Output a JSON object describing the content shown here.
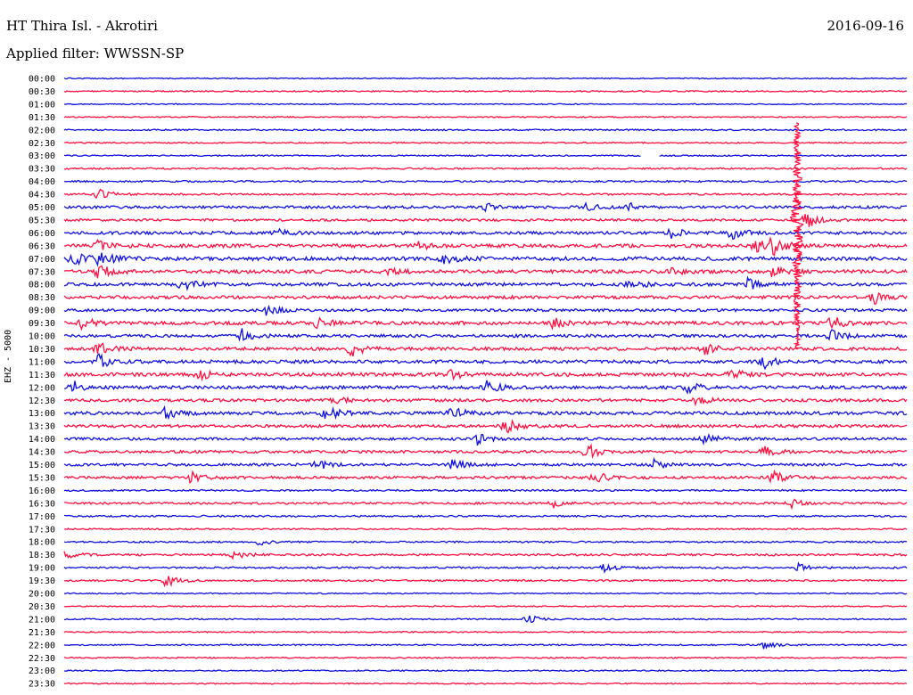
{
  "header": {
    "station": "HT Thira Isl. - Akrotiri",
    "date": "2016-09-16",
    "filter": "Applied filter: WWSSN-SP"
  },
  "y_axis_label": "EHZ - 5000",
  "colors": {
    "even_trace": "#1010e0",
    "odd_trace": "#ff1040",
    "text": "#000000",
    "background": "#ffffff"
  },
  "chart_data": {
    "type": "line",
    "title": "HT Thira Isl. - Akrotiri",
    "subtitle": "Applied filter: WWSSN-SP",
    "ylabel": "EHZ - 5000",
    "trace_interval": "30 min",
    "rows": [
      {
        "time": "00:00",
        "activity": 0.05,
        "events": []
      },
      {
        "time": "00:30",
        "activity": 0.15,
        "events": []
      },
      {
        "time": "01:00",
        "activity": 0.05,
        "events": []
      },
      {
        "time": "01:30",
        "activity": 0.08,
        "events": []
      },
      {
        "time": "02:00",
        "activity": 0.2,
        "events": []
      },
      {
        "time": "02:30",
        "activity": 0.12,
        "events": []
      },
      {
        "time": "03:00",
        "activity": 0.15,
        "events": [],
        "gap": [
          0.685,
          0.705
        ]
      },
      {
        "time": "03:30",
        "activity": 0.25,
        "events": []
      },
      {
        "time": "04:00",
        "activity": 0.3,
        "events": []
      },
      {
        "time": "04:30",
        "activity": 0.3,
        "events": [
          [
            0.04,
            6
          ]
        ]
      },
      {
        "time": "05:00",
        "activity": 0.6,
        "events": [
          [
            0.5,
            4
          ],
          [
            0.62,
            5
          ],
          [
            0.67,
            4
          ]
        ]
      },
      {
        "time": "05:30",
        "activity": 0.5,
        "events": [
          [
            0.88,
            10
          ]
        ]
      },
      {
        "time": "06:00",
        "activity": 0.7,
        "events": [
          [
            0.25,
            5
          ],
          [
            0.72,
            6
          ],
          [
            0.79,
            8
          ]
        ]
      },
      {
        "time": "06:30",
        "activity": 0.9,
        "events": [
          [
            0.04,
            5
          ],
          [
            0.42,
            4
          ],
          [
            0.82,
            7
          ],
          [
            0.84,
            10
          ]
        ]
      },
      {
        "time": "07:00",
        "activity": 1.0,
        "events": [
          [
            0.01,
            8
          ],
          [
            0.04,
            9
          ],
          [
            0.45,
            6
          ]
        ]
      },
      {
        "time": "07:30",
        "activity": 0.9,
        "events": [
          [
            0.04,
            8
          ],
          [
            0.38,
            5
          ],
          [
            0.72,
            5
          ],
          [
            0.84,
            6
          ]
        ]
      },
      {
        "time": "08:00",
        "activity": 0.8,
        "events": [
          [
            0.14,
            7
          ],
          [
            0.67,
            6
          ],
          [
            0.81,
            7
          ]
        ]
      },
      {
        "time": "08:30",
        "activity": 0.8,
        "events": [
          [
            0.96,
            8
          ]
        ]
      },
      {
        "time": "09:00",
        "activity": 0.6,
        "events": [
          [
            0.24,
            6
          ]
        ]
      },
      {
        "time": "09:30",
        "activity": 0.9,
        "events": [
          [
            0.02,
            7
          ],
          [
            0.3,
            7
          ],
          [
            0.58,
            6
          ],
          [
            0.91,
            8
          ]
        ]
      },
      {
        "time": "10:00",
        "activity": 0.7,
        "events": [
          [
            0.21,
            8
          ],
          [
            0.91,
            7
          ]
        ]
      },
      {
        "time": "10:30",
        "activity": 0.8,
        "events": [
          [
            0.04,
            7
          ],
          [
            0.34,
            9
          ],
          [
            0.76,
            7
          ]
        ]
      },
      {
        "time": "11:00",
        "activity": 0.8,
        "events": [
          [
            0.04,
            8
          ],
          [
            0.83,
            7
          ]
        ]
      },
      {
        "time": "11:30",
        "activity": 0.9,
        "events": [
          [
            0.16,
            5
          ],
          [
            0.46,
            6
          ],
          [
            0.79,
            7
          ]
        ]
      },
      {
        "time": "12:00",
        "activity": 0.8,
        "events": [
          [
            0.01,
            7
          ],
          [
            0.5,
            8
          ],
          [
            0.74,
            6
          ]
        ]
      },
      {
        "time": "12:30",
        "activity": 0.7,
        "events": [
          [
            0.32,
            5
          ],
          [
            0.75,
            5
          ]
        ]
      },
      {
        "time": "13:00",
        "activity": 0.8,
        "events": [
          [
            0.12,
            7
          ],
          [
            0.31,
            9
          ],
          [
            0.46,
            7
          ]
        ]
      },
      {
        "time": "13:30",
        "activity": 0.7,
        "events": [
          [
            0.52,
            11
          ]
        ]
      },
      {
        "time": "14:00",
        "activity": 0.6,
        "events": [
          [
            0.49,
            6
          ],
          [
            0.76,
            6
          ]
        ]
      },
      {
        "time": "14:30",
        "activity": 0.6,
        "events": [
          [
            0.62,
            9
          ],
          [
            0.83,
            6
          ]
        ]
      },
      {
        "time": "15:00",
        "activity": 0.6,
        "events": [
          [
            0.3,
            6
          ],
          [
            0.46,
            6
          ],
          [
            0.7,
            5
          ]
        ]
      },
      {
        "time": "15:30",
        "activity": 0.6,
        "events": [
          [
            0.15,
            6
          ],
          [
            0.63,
            6
          ],
          [
            0.84,
            8
          ]
        ]
      },
      {
        "time": "16:00",
        "activity": 0.3,
        "events": []
      },
      {
        "time": "16:30",
        "activity": 0.4,
        "events": [
          [
            0.58,
            5
          ],
          [
            0.86,
            6
          ]
        ]
      },
      {
        "time": "17:00",
        "activity": 0.25,
        "events": []
      },
      {
        "time": "17:30",
        "activity": 0.2,
        "events": []
      },
      {
        "time": "18:00",
        "activity": 0.25,
        "events": [
          [
            0.23,
            4
          ]
        ]
      },
      {
        "time": "18:30",
        "activity": 0.4,
        "events": [
          [
            0.0,
            5
          ],
          [
            0.2,
            5
          ]
        ]
      },
      {
        "time": "19:00",
        "activity": 0.3,
        "events": [
          [
            0.64,
            5
          ],
          [
            0.87,
            5
          ]
        ]
      },
      {
        "time": "19:30",
        "activity": 0.3,
        "events": [
          [
            0.12,
            8
          ]
        ]
      },
      {
        "time": "20:00",
        "activity": 0.1,
        "events": []
      },
      {
        "time": "20:30",
        "activity": 0.1,
        "events": []
      },
      {
        "time": "21:00",
        "activity": 0.15,
        "events": [
          [
            0.55,
            5
          ]
        ]
      },
      {
        "time": "21:30",
        "activity": 0.1,
        "events": []
      },
      {
        "time": "22:00",
        "activity": 0.15,
        "events": [
          [
            0.83,
            4
          ]
        ]
      },
      {
        "time": "22:30",
        "activity": 0.12,
        "events": []
      },
      {
        "time": "23:00",
        "activity": 0.12,
        "events": []
      },
      {
        "time": "23:30",
        "activity": 0.1,
        "events": []
      }
    ],
    "large_event": {
      "start_time": "02:00",
      "end_time": "10:30",
      "position": 0.87,
      "description_visible": false
    }
  }
}
